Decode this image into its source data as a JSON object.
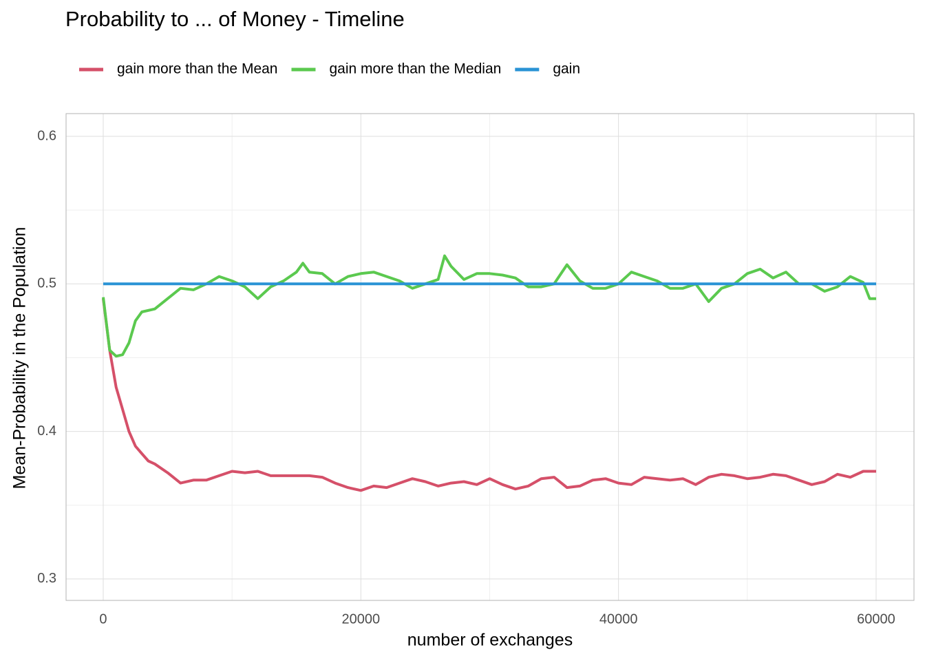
{
  "chart_data": {
    "type": "line",
    "title": "Probability to ... of Money - Timeline",
    "xlabel": "number of exchanges",
    "ylabel": "Mean-Probability in the Population",
    "xlim": [
      -2885,
      62940
    ],
    "ylim": [
      0.2855,
      0.6154
    ],
    "xticks": [
      0,
      20000,
      40000,
      60000
    ],
    "yticks": [
      0.3,
      0.4,
      0.5,
      0.6
    ],
    "xminor": [
      10000,
      30000,
      50000
    ],
    "yminor": [
      0.35,
      0.45,
      0.55
    ],
    "grid": true,
    "legend": "top-left",
    "series": [
      {
        "name": "gain more than the Mean",
        "color": "#d55069",
        "x": [
          0,
          500,
          1000,
          1500,
          2000,
          2500,
          3000,
          3500,
          4000,
          5000,
          6000,
          7000,
          8000,
          9000,
          10000,
          11000,
          12000,
          13000,
          14000,
          15000,
          16000,
          17000,
          18000,
          19000,
          20000,
          21000,
          22000,
          23000,
          24000,
          25000,
          26000,
          27000,
          28000,
          29000,
          30000,
          31000,
          32000,
          33000,
          34000,
          35000,
          36000,
          37000,
          38000,
          39000,
          40000,
          41000,
          42000,
          43000,
          44000,
          45000,
          46000,
          47000,
          48000,
          49000,
          50000,
          51000,
          52000,
          53000,
          54000,
          55000,
          56000,
          57000,
          58000,
          59000,
          60000
        ],
        "values": [
          0.49,
          0.455,
          0.43,
          0.415,
          0.4,
          0.39,
          0.385,
          0.38,
          0.378,
          0.372,
          0.365,
          0.367,
          0.367,
          0.37,
          0.373,
          0.372,
          0.373,
          0.37,
          0.37,
          0.37,
          0.37,
          0.369,
          0.365,
          0.362,
          0.36,
          0.363,
          0.362,
          0.365,
          0.368,
          0.366,
          0.363,
          0.365,
          0.366,
          0.364,
          0.368,
          0.364,
          0.361,
          0.363,
          0.368,
          0.369,
          0.362,
          0.363,
          0.367,
          0.368,
          0.365,
          0.364,
          0.369,
          0.368,
          0.367,
          0.368,
          0.364,
          0.369,
          0.371,
          0.37,
          0.368,
          0.369,
          0.371,
          0.37,
          0.367,
          0.364,
          0.366,
          0.371,
          0.369,
          0.373,
          0.373
        ]
      },
      {
        "name": "gain more than the Median",
        "color": "#5bc94f",
        "x": [
          0,
          500,
          1000,
          1500,
          2000,
          2500,
          3000,
          4000,
          5000,
          6000,
          7000,
          8000,
          9000,
          10000,
          11000,
          12000,
          13000,
          14000,
          15000,
          15500,
          16000,
          17000,
          18000,
          19000,
          20000,
          21000,
          22000,
          23000,
          24000,
          25000,
          26000,
          26500,
          27000,
          28000,
          29000,
          30000,
          31000,
          32000,
          33000,
          34000,
          35000,
          36000,
          37000,
          38000,
          39000,
          40000,
          41000,
          42000,
          43000,
          44000,
          45000,
          46000,
          47000,
          48000,
          49000,
          50000,
          51000,
          52000,
          53000,
          54000,
          55000,
          56000,
          57000,
          58000,
          59000,
          59500,
          60000
        ],
        "values": [
          0.491,
          0.455,
          0.451,
          0.452,
          0.46,
          0.475,
          0.481,
          0.483,
          0.49,
          0.497,
          0.496,
          0.5,
          0.505,
          0.502,
          0.498,
          0.49,
          0.498,
          0.502,
          0.508,
          0.514,
          0.508,
          0.507,
          0.5,
          0.505,
          0.507,
          0.508,
          0.505,
          0.502,
          0.497,
          0.5,
          0.503,
          0.519,
          0.512,
          0.503,
          0.507,
          0.507,
          0.506,
          0.504,
          0.498,
          0.498,
          0.5,
          0.513,
          0.502,
          0.497,
          0.497,
          0.5,
          0.508,
          0.505,
          0.502,
          0.497,
          0.497,
          0.5,
          0.488,
          0.497,
          0.5,
          0.507,
          0.51,
          0.504,
          0.508,
          0.5,
          0.5,
          0.495,
          0.498,
          0.505,
          0.501,
          0.49,
          0.49
        ]
      },
      {
        "name": "gain",
        "color": "#2a93d5",
        "x": [
          0,
          60000
        ],
        "values": [
          0.5,
          0.5
        ]
      }
    ]
  }
}
